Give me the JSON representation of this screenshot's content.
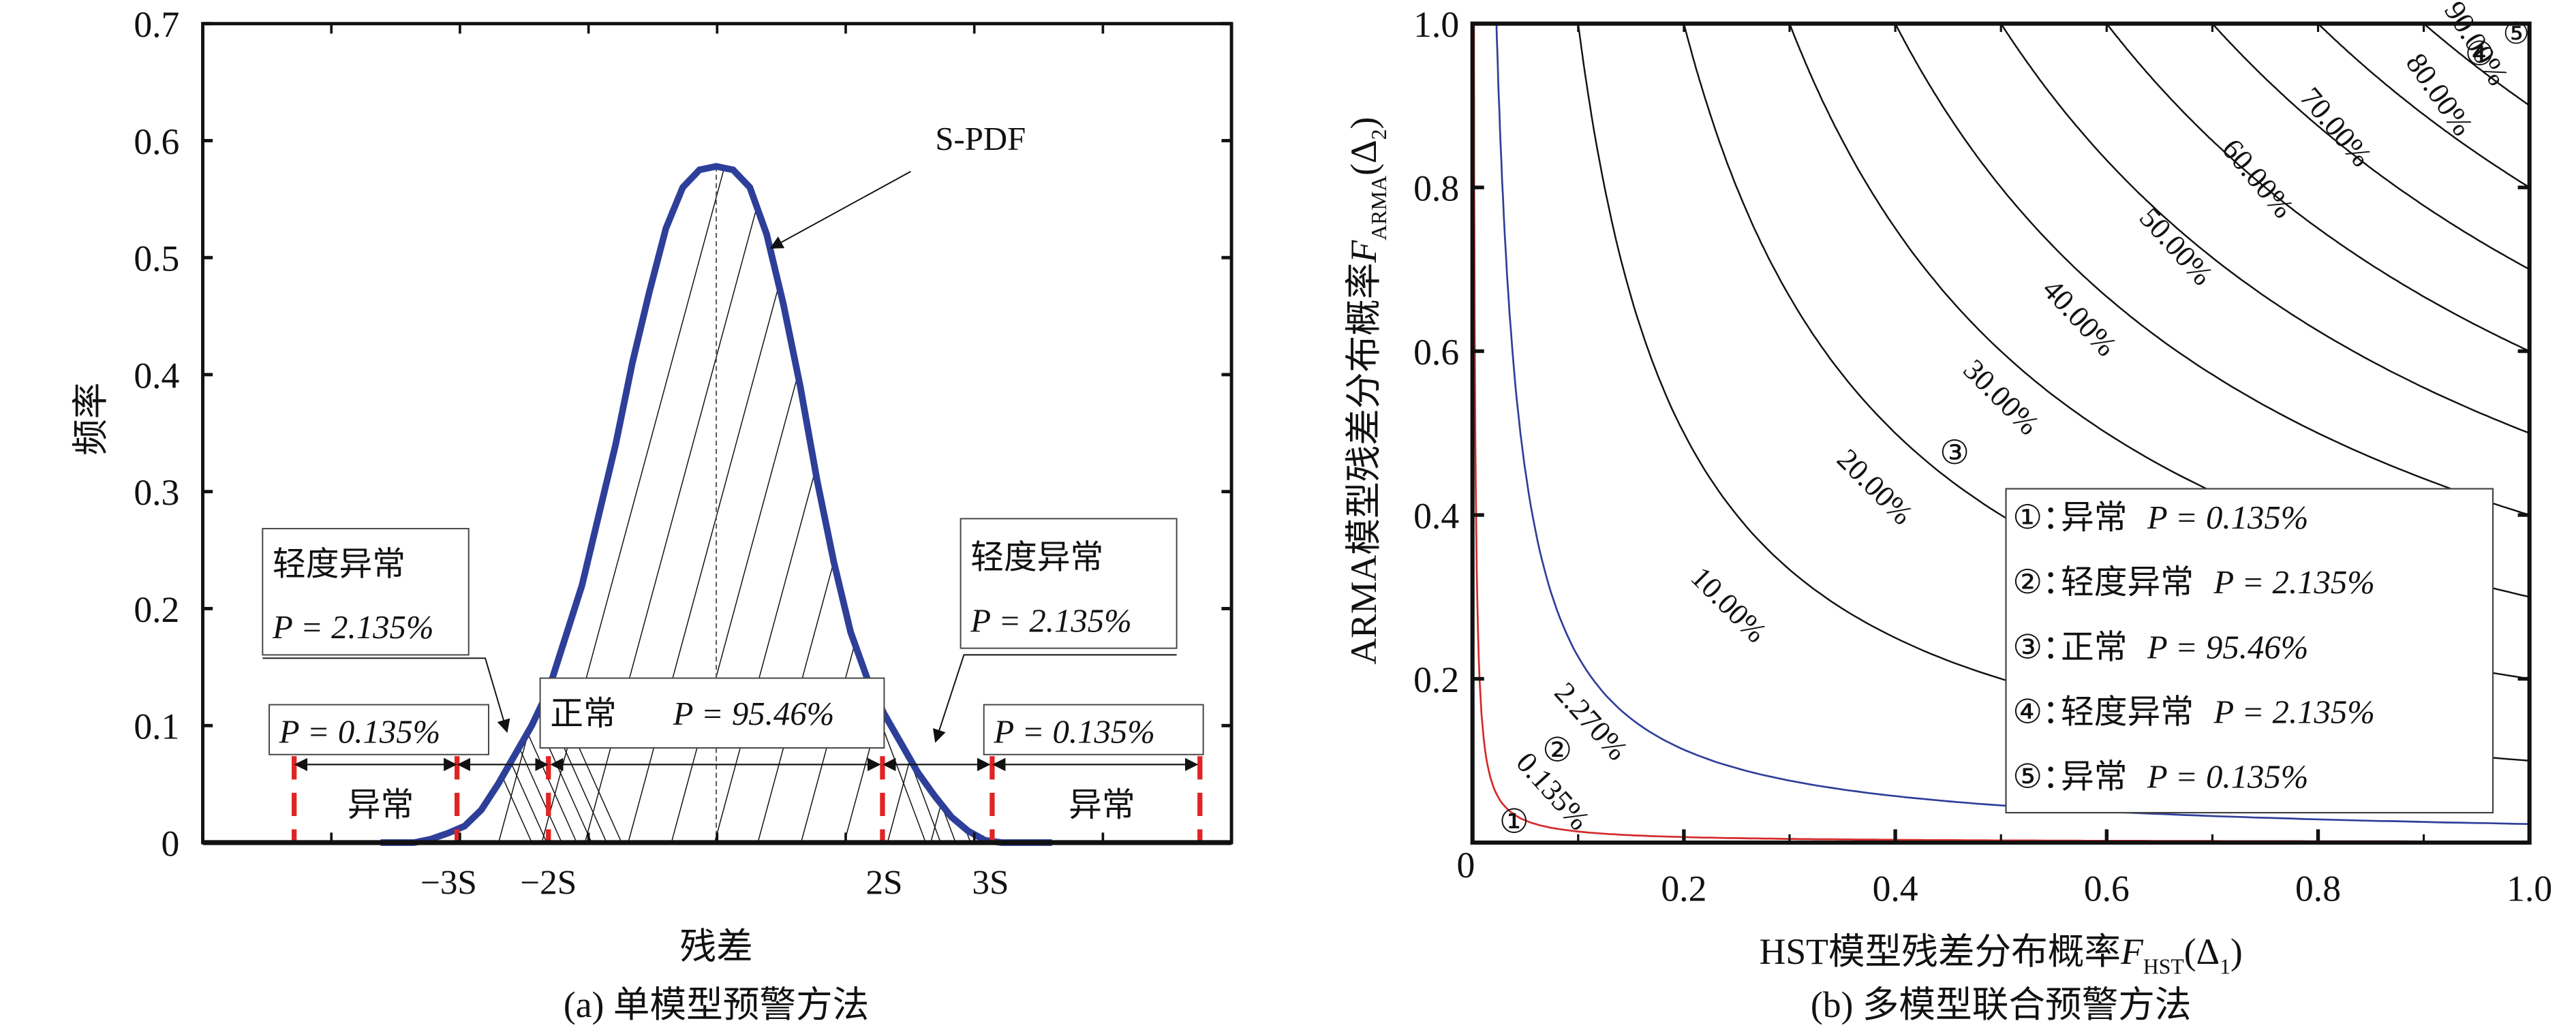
{
  "chart_data": [
    {
      "type": "area",
      "title": "(a) 单模型预警方法",
      "xlabel": "残差",
      "ylabel": "频率",
      "ylim": [
        0,
        0.7
      ],
      "yticks": [
        "0",
        "0.1",
        "0.2",
        "0.3",
        "0.4",
        "0.5",
        "0.6",
        "0.7"
      ],
      "xtick_labels": [
        "−3S",
        "−2S",
        "2S",
        "3S"
      ],
      "grid": false,
      "series": [
        {
          "name": "S-PDF",
          "color": "#2e3f99",
          "x_in_S": [
            -4.0,
            -3.6,
            -3.4,
            -3.2,
            -3.0,
            -2.8,
            -2.6,
            -2.4,
            -2.2,
            -2.0,
            -1.8,
            -1.6,
            -1.4,
            -1.2,
            -1.0,
            -0.8,
            -0.6,
            -0.4,
            -0.2,
            0.0,
            0.2,
            0.4,
            0.6,
            0.8,
            1.0,
            1.2,
            1.4,
            1.6,
            1.8,
            2.0,
            2.2,
            2.4,
            2.6,
            2.8,
            3.0,
            3.2,
            3.4,
            3.6,
            4.0
          ],
          "y": [
            0.0,
            0.0,
            0.003,
            0.008,
            0.014,
            0.028,
            0.05,
            0.075,
            0.1,
            0.13,
            0.175,
            0.22,
            0.28,
            0.34,
            0.41,
            0.47,
            0.525,
            0.56,
            0.575,
            0.578,
            0.575,
            0.56,
            0.52,
            0.46,
            0.39,
            0.31,
            0.24,
            0.18,
            0.14,
            0.11,
            0.085,
            0.06,
            0.04,
            0.022,
            0.01,
            0.002,
            0.0,
            0.0,
            0.0
          ]
        }
      ],
      "annotations": {
        "spdf_label": "S-PDF",
        "left_mild": {
          "title": "轻度异常",
          "p": "P = 2.135%"
        },
        "right_mild": {
          "title": "轻度异常",
          "p": "P = 2.135%"
        },
        "normal": {
          "title": "正常",
          "p": "P = 95.46%"
        },
        "left_abn": {
          "p": "P = 0.135%",
          "label": "异常"
        },
        "right_abn": {
          "p": "P = 0.135%",
          "label": "异常"
        }
      }
    },
    {
      "type": "contour",
      "title": "(b) 多模型联合预警方法",
      "xlabel_main": "HST模型残差分布概率",
      "xlabel_sym": "F",
      "xlabel_sub": "HST",
      "xlabel_arg": "(Δ",
      "xlabel_argsub": "1",
      "xlabel_close": ")",
      "ylabel_main": "ARMA模型残差分布概率",
      "ylabel_sym": "F",
      "ylabel_sub": "ARMA",
      "ylabel_arg": "(Δ",
      "ylabel_argsub": "2",
      "ylabel_close": ")",
      "xlim": [
        0,
        1.0
      ],
      "ylim": [
        0,
        1.0
      ],
      "xticks": [
        "0",
        "0.2",
        "0.4",
        "0.6",
        "0.8",
        "1.0"
      ],
      "yticks": [
        "0.2",
        "0.4",
        "0.6",
        "0.8",
        "1.0"
      ],
      "levels": [
        {
          "value": 0.135,
          "label": "0.135%",
          "color": "#d42a2a"
        },
        {
          "value": 2.27,
          "label": "2.270%",
          "color": "#2e3f99"
        },
        {
          "value": 10,
          "label": "10.00%",
          "color": "#111111"
        },
        {
          "value": 20,
          "label": "20.00%",
          "color": "#111111"
        },
        {
          "value": 30,
          "label": "30.00%",
          "color": "#111111"
        },
        {
          "value": 40,
          "label": "40.00%",
          "color": "#111111"
        },
        {
          "value": 50,
          "label": "50.00%",
          "color": "#111111"
        },
        {
          "value": 60,
          "label": "60.00%",
          "color": "#111111"
        },
        {
          "value": 70,
          "label": "70.00%",
          "color": "#111111"
        },
        {
          "value": 80,
          "label": "80.00%",
          "color": "#111111"
        },
        {
          "value": 90,
          "label": "90.00%",
          "color": "#111111"
        }
      ],
      "region_markers": [
        {
          "label": "①",
          "color": "#d42a2a"
        },
        {
          "label": "②",
          "color": "#2e3f99"
        },
        {
          "label": "③",
          "color": "#111111"
        },
        {
          "label": "④",
          "color": "#2e3f99"
        },
        {
          "label": "⑤",
          "color": "#d42a2a"
        }
      ],
      "legend_position": "bottom-right",
      "legend": [
        {
          "num": "①：",
          "name": "异常",
          "p": "P = 0.135%"
        },
        {
          "num": "②：",
          "name": "轻度异常",
          "p": "P = 2.135%"
        },
        {
          "num": "③：",
          "name": "正常",
          "p": "P = 95.46%"
        },
        {
          "num": "④：",
          "name": "轻度异常",
          "p": "P = 2.135%"
        },
        {
          "num": "⑤：",
          "name": "异常",
          "p": "P = 0.135%"
        }
      ]
    }
  ]
}
